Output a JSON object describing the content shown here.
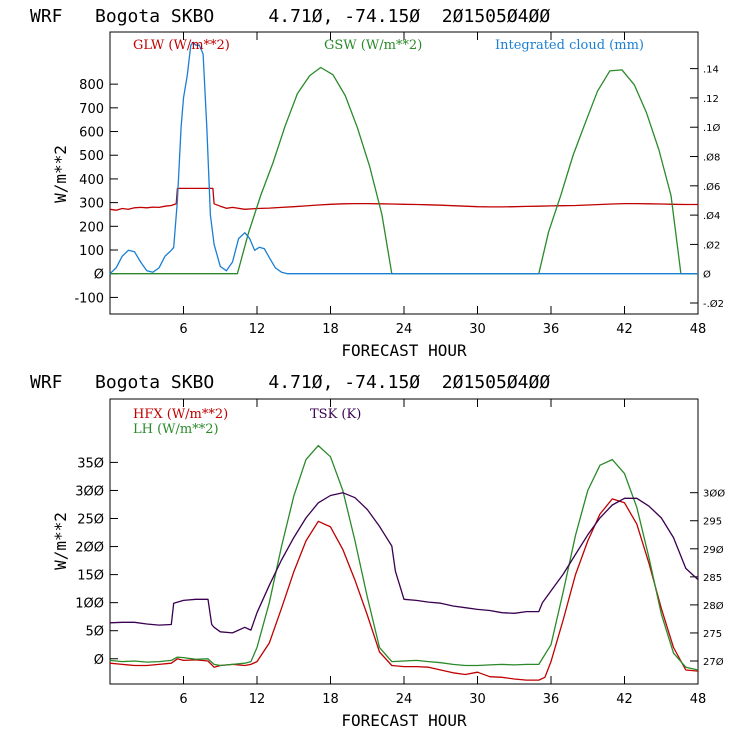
{
  "chart_data": [
    {
      "type": "line",
      "title": "WRF   Bogota SKBO     4.71Ø, -74.15Ø  2Ø1505Ø4ØØ",
      "xlabel": "FORECAST HOUR",
      "ylabel": "W/m**2",
      "xlim": [
        0,
        48
      ],
      "ylim": [
        -170,
        1020
      ],
      "x_ticks": [
        6,
        12,
        18,
        24,
        30,
        36,
        42,
        48
      ],
      "x_tick_labels": [
        "6",
        "12",
        "18",
        "24",
        "30",
        "36",
        "42",
        "48"
      ],
      "y_ticks": [
        -100,
        0,
        100,
        200,
        300,
        400,
        500,
        600,
        700,
        800
      ],
      "y_tick_labels": [
        "-100",
        "Ø",
        "100",
        "200",
        "300",
        "400",
        "500",
        "600",
        "700",
        "800"
      ],
      "y2_label_title": "Integrated cloud (mm)",
      "y2lim": [
        -0.0275,
        0.165
      ],
      "y2_ticks": [
        -0.02,
        0,
        0.02,
        0.04,
        0.06,
        0.08,
        0.1,
        0.12,
        0.14
      ],
      "y2_tick_labels": [
        "-.Ø2",
        "Ø",
        ".Ø2",
        ".Ø4",
        ".Ø6",
        ".Ø8",
        ".1Ø",
        ".12",
        ".14"
      ],
      "series": [
        {
          "name": "GLW (W/m**2)",
          "axis": "left",
          "color": "#c00000",
          "x": [
            0,
            0.5,
            1,
            1.5,
            2,
            2.5,
            3,
            3.5,
            4,
            4.5,
            5,
            5.4,
            5.5,
            6,
            6.5,
            7,
            7.5,
            8,
            8.4,
            8.5,
            9,
            9.5,
            10,
            11,
            12,
            13,
            14,
            15,
            16,
            17,
            18,
            19,
            20,
            21,
            22,
            23,
            24,
            25,
            26,
            27,
            28,
            29,
            30,
            31,
            32,
            33,
            34,
            35,
            36,
            37,
            38,
            39,
            40,
            41,
            42,
            43,
            44,
            45,
            46,
            47,
            48
          ],
          "y": [
            272,
            268,
            275,
            272,
            278,
            280,
            278,
            281,
            280,
            285,
            288,
            295,
            360,
            360,
            360,
            360,
            360,
            360,
            360,
            295,
            285,
            276,
            280,
            272,
            275,
            277,
            280,
            283,
            286,
            290,
            293,
            295,
            296,
            296,
            295,
            294,
            293,
            292,
            291,
            289,
            287,
            285,
            283,
            282,
            282,
            283,
            284,
            285,
            286,
            287,
            288,
            290,
            292,
            294,
            296,
            296,
            295,
            294,
            293,
            292,
            292
          ]
        },
        {
          "name": "GSW (W/m**2)",
          "axis": "left",
          "color": "#2a8a2a",
          "x": [
            0,
            10.4,
            11.3,
            12.3,
            13.3,
            14.3,
            15.3,
            16.3,
            17.2,
            18.2,
            19.2,
            20.2,
            21.2,
            22.2,
            23.0,
            35.0,
            35.8,
            36.8,
            37.8,
            38.8,
            39.8,
            40.8,
            41.8,
            42.8,
            43.8,
            44.8,
            45.8,
            46.6,
            48
          ],
          "y": [
            0,
            0,
            171,
            330,
            467,
            624,
            760,
            836,
            870,
            840,
            752,
            616,
            452,
            250,
            0,
            0,
            175,
            331,
            499,
            637,
            770,
            856,
            860,
            797,
            679,
            524,
            330,
            0,
            0
          ]
        },
        {
          "name": "Integrated cloud (mm)",
          "axis": "right",
          "color": "#1a7fd4",
          "x": [
            0,
            0.5,
            1,
            1.5,
            2,
            2.5,
            3,
            3.5,
            4,
            4.5,
            5,
            5.2,
            5.5,
            5.8,
            6,
            6.3,
            6.6,
            6.8,
            7,
            7.3,
            7.6,
            7.9,
            8.2,
            8.5,
            9.0,
            9.5,
            10.0,
            10.5,
            11,
            11.4,
            11.8,
            12.2,
            12.6,
            13,
            13.5,
            14,
            14.5,
            48
          ],
          "y": [
            0,
            0.004,
            0.012,
            0.016,
            0.015,
            0.008,
            0.002,
            0.001,
            0.004,
            0.012,
            0.016,
            0.018,
            0.05,
            0.1,
            0.12,
            0.135,
            0.156,
            0.158,
            0.156,
            0.156,
            0.15,
            0.1,
            0.04,
            0.02,
            0.005,
            0.002,
            0.008,
            0.024,
            0.028,
            0.024,
            0.016,
            0.018,
            0.017,
            0.011,
            0.004,
            0.001,
            0,
            0
          ]
        }
      ]
    },
    {
      "type": "line",
      "title": "WRF   Bogota SKBO     4.71Ø, -74.15Ø  2Ø1505Ø4ØØ",
      "xlabel": "FORECAST HOUR",
      "ylabel": "W/m**2",
      "xlim": [
        0,
        48
      ],
      "ylim": [
        -45,
        463
      ],
      "x_ticks": [
        6,
        12,
        18,
        24,
        30,
        36,
        42,
        48
      ],
      "x_tick_labels": [
        "6",
        "12",
        "18",
        "24",
        "30",
        "36",
        "42",
        "48"
      ],
      "y_ticks": [
        0,
        50,
        100,
        150,
        200,
        250,
        300,
        350
      ],
      "y_tick_labels": [
        "Ø",
        "5Ø",
        "1ØØ",
        "15Ø",
        "2ØØ",
        "25Ø",
        "3ØØ",
        "35Ø"
      ],
      "y2lim": [
        265.9,
        316.7
      ],
      "y2_ticks": [
        270,
        275,
        280,
        285,
        290,
        295,
        300
      ],
      "y2_tick_labels": [
        "27Ø",
        "275",
        "28Ø",
        "285",
        "29Ø",
        "295",
        "3ØØ"
      ],
      "series": [
        {
          "name": "HFX (W/m**2)",
          "axis": "left",
          "color": "#c00000",
          "x": [
            0,
            1,
            2,
            3,
            4,
            5,
            5.5,
            6,
            7,
            8,
            8.5,
            9,
            10,
            11,
            11.5,
            12,
            13,
            14,
            15,
            16,
            17,
            18,
            19,
            20,
            21,
            22,
            23,
            24,
            25,
            26,
            27,
            28,
            29,
            30,
            31,
            32,
            33,
            34,
            35,
            35.5,
            36,
            37,
            38,
            39,
            40,
            41,
            42,
            43,
            44,
            45,
            46,
            47,
            48
          ],
          "y": [
            -8,
            -10,
            -12,
            -12,
            -10,
            -8,
            0,
            -3,
            -2,
            -4,
            -15,
            -12,
            -10,
            -12,
            -10,
            -5,
            28,
            90,
            155,
            210,
            245,
            235,
            195,
            140,
            78,
            12,
            -12,
            -14,
            -14,
            -15,
            -20,
            -25,
            -28,
            -24,
            -32,
            -33,
            -36,
            -38,
            -38,
            -33,
            -5,
            70,
            150,
            210,
            258,
            285,
            278,
            240,
            170,
            90,
            20,
            -20,
            -22
          ]
        },
        {
          "name": "LH (W/m**2)",
          "axis": "left",
          "color": "#2a8a2a",
          "x": [
            0,
            1,
            2,
            3,
            4,
            5,
            5.5,
            6,
            7,
            8,
            8.5,
            9,
            10,
            11,
            11.5,
            12,
            13,
            14,
            15,
            16,
            17,
            18,
            19,
            20,
            21,
            22,
            23,
            24,
            25,
            26,
            27,
            28,
            29,
            30,
            31,
            32,
            33,
            34,
            35,
            36,
            37,
            38,
            39,
            40,
            41,
            42,
            43,
            44,
            45,
            46,
            47,
            48
          ],
          "y": [
            -3,
            -5,
            -4,
            -6,
            -5,
            -3,
            3,
            2,
            -1,
            0,
            -10,
            -12,
            -10,
            -8,
            -5,
            20,
            100,
            200,
            290,
            355,
            380,
            360,
            300,
            210,
            110,
            20,
            -5,
            -4,
            -3,
            -5,
            -7,
            -10,
            -12,
            -12,
            -11,
            -10,
            -11,
            -10,
            -10,
            25,
            120,
            220,
            300,
            345,
            355,
            330,
            270,
            180,
            80,
            10,
            -15,
            -20
          ]
        },
        {
          "name": "TSK (K)",
          "axis": "right",
          "color": "#3a0050",
          "x": [
            0,
            1,
            2,
            3,
            4,
            5,
            5.2,
            6,
            7,
            8,
            8.3,
            8.5,
            9,
            10,
            11,
            11.5,
            12,
            13,
            14,
            15,
            16,
            17,
            18,
            19,
            20,
            21,
            22,
            23,
            23.3,
            24,
            25,
            26,
            27,
            28,
            29,
            30,
            31,
            32,
            33,
            34,
            35,
            35.3,
            36,
            37,
            38,
            39,
            40,
            41,
            42,
            43,
            44,
            45,
            46,
            47,
            48
          ],
          "y": [
            276.8,
            276.9,
            276.9,
            276.6,
            276.4,
            276.5,
            280.3,
            280.8,
            281.0,
            281.0,
            276.5,
            276.0,
            275.2,
            275.0,
            276.0,
            275.5,
            278.6,
            283.5,
            288.0,
            292.0,
            295.5,
            298.2,
            299.5,
            300.0,
            299.1,
            297.0,
            294.0,
            290.5,
            286.0,
            281.0,
            280.8,
            280.5,
            280.3,
            279.8,
            279.5,
            279.2,
            279.0,
            278.6,
            278.5,
            278.8,
            278.8,
            280.4,
            282.5,
            285.5,
            289.0,
            292.5,
            295.5,
            297.8,
            299.0,
            299.0,
            297.6,
            295.5,
            292.0,
            286.5,
            284.5
          ]
        }
      ]
    }
  ]
}
